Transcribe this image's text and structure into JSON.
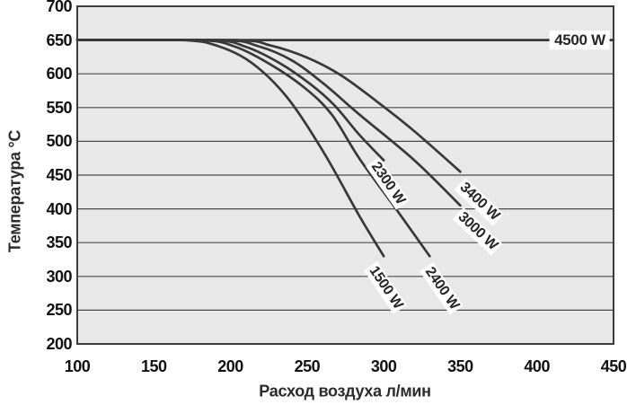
{
  "chart_data": {
    "type": "line",
    "title": "",
    "xlabel": "Расход воздуха л/мин",
    "ylabel": "Температура °C",
    "xlim": [
      100,
      450
    ],
    "ylim": [
      200,
      700
    ],
    "x_ticks": [
      100,
      150,
      200,
      250,
      300,
      350,
      400,
      450
    ],
    "y_ticks": [
      700,
      650,
      600,
      550,
      500,
      450,
      400,
      350,
      300,
      250,
      200
    ],
    "grid": "horizontal",
    "legend_position": "labels-on-curves",
    "series": [
      {
        "name": "1500 W",
        "points": [
          [
            100,
            650
          ],
          [
            168,
            650
          ],
          [
            192,
            641
          ],
          [
            214,
            616
          ],
          [
            237,
            565
          ],
          [
            261,
            483
          ],
          [
            284,
            390
          ],
          [
            300,
            330
          ]
        ],
        "label_anchor": [
          296,
          322
        ],
        "label_angle": 56
      },
      {
        "name": "2400 W",
        "points": [
          [
            100,
            650
          ],
          [
            178,
            650
          ],
          [
            202,
            641
          ],
          [
            226,
            614
          ],
          [
            248,
            580
          ],
          [
            266,
            540
          ],
          [
            284,
            475
          ],
          [
            308,
            400
          ],
          [
            330,
            330
          ]
        ],
        "label_anchor": [
          332,
          321
        ],
        "label_angle": 55
      },
      {
        "name": "2300 W",
        "points": [
          [
            100,
            650
          ],
          [
            186,
            650
          ],
          [
            210,
            640
          ],
          [
            232,
            616
          ],
          [
            252,
            585
          ],
          [
            268,
            553
          ],
          [
            284,
            510
          ],
          [
            300,
            472
          ]
        ],
        "label_anchor": [
          297,
          476
        ],
        "label_angle": 55
      },
      {
        "name": "3000 W",
        "points": [
          [
            100,
            650
          ],
          [
            194,
            650
          ],
          [
            218,
            641
          ],
          [
            240,
            620
          ],
          [
            261,
            585
          ],
          [
            284,
            540
          ],
          [
            320,
            472
          ],
          [
            350,
            405
          ]
        ],
        "label_anchor": [
          352,
          402
        ],
        "label_angle": 43
      },
      {
        "name": "3400 W",
        "points": [
          [
            100,
            650
          ],
          [
            202,
            650
          ],
          [
            226,
            642
          ],
          [
            250,
            624
          ],
          [
            272,
            598
          ],
          [
            295,
            560
          ],
          [
            320,
            515
          ],
          [
            350,
            455
          ]
        ],
        "label_anchor": [
          353,
          446
        ],
        "label_angle": 43
      },
      {
        "name": "4500 W",
        "points": [
          [
            100,
            650
          ],
          [
            450,
            650
          ]
        ],
        "label_anchor": [
          428,
          650
        ],
        "label_angle": 0
      }
    ]
  },
  "colors": {
    "page_bg": "#ffffff",
    "plot_bg": "#e8e8e8",
    "grid": "#4a4a4a",
    "border": "#3c3c3c",
    "curve": "#383838",
    "tick_text": "#111111",
    "axis_title_text": "#2b2b2b",
    "curve_label_text": "#262626",
    "curve_label_bg": "#ffffff"
  }
}
